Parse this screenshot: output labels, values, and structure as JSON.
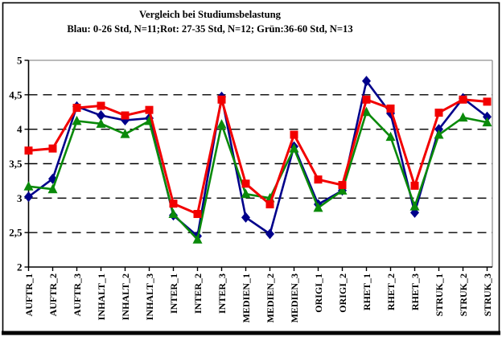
{
  "chart_data": {
    "type": "line",
    "title": "Vergleich bei Studiumsbelastung",
    "subtitle": "Blau: 0-26 Std, N=11;Rot: 27-35 Std, N=12; Grün:36-60 Std, N=13",
    "categories": [
      "AUFTR_1",
      "AUFTR_2",
      "AUFTR_3",
      "INHALT_1",
      "INHALT_2",
      "INHALT_3",
      "INTER_1",
      "INTER_2",
      "INTER_3",
      "MEDIEN_1",
      "MEDIEN_2",
      "MEDIEN_3",
      "ORIGI_1",
      "ORIGI_2",
      "RHET_1",
      "RHET_2",
      "RHET_3",
      "STRUK_1",
      "STRUK_2",
      "STRUK_3"
    ],
    "series": [
      {
        "name": "Blau: 0-26 Std, N=11",
        "color": "#00008B",
        "marker": "diamond",
        "values": [
          3.02,
          3.28,
          4.33,
          4.2,
          4.13,
          4.16,
          2.75,
          2.45,
          4.47,
          2.72,
          2.48,
          3.75,
          2.91,
          3.11,
          4.7,
          4.23,
          2.79,
          4.0,
          4.45,
          4.18
        ]
      },
      {
        "name": "Rot: 27-35 Std, N=12",
        "color": "#F20000",
        "marker": "square",
        "values": [
          3.69,
          3.72,
          4.31,
          4.34,
          4.2,
          4.28,
          2.92,
          2.77,
          4.43,
          3.21,
          2.91,
          3.92,
          3.27,
          3.19,
          4.43,
          4.3,
          3.18,
          4.24,
          4.43,
          4.4
        ]
      },
      {
        "name": "Grün: 36-60 Std, N=13",
        "color": "#0A8A0A",
        "marker": "triangle",
        "values": [
          3.17,
          3.13,
          4.12,
          4.08,
          3.93,
          4.12,
          2.77,
          2.4,
          4.07,
          3.06,
          3.0,
          3.72,
          2.86,
          3.11,
          4.25,
          3.89,
          2.88,
          3.92,
          4.17,
          4.1
        ]
      }
    ],
    "ylim": [
      2,
      5
    ],
    "ytick_step": 0.5,
    "ytick_labels": [
      "2",
      "2,5",
      "3",
      "3,5",
      "4",
      "4,5",
      "5"
    ],
    "xlabel": "",
    "ylabel": "",
    "grid": "horizontal-dashed",
    "legend_position": "none (series identified in subtitle)",
    "x_label_rotation_deg": -90
  }
}
